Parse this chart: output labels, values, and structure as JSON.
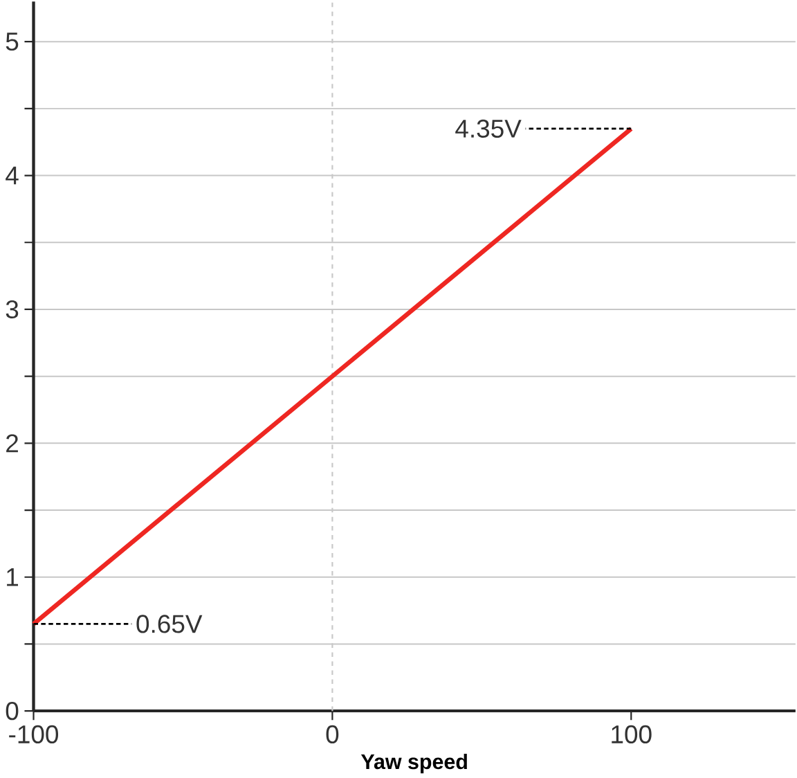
{
  "chart_data": {
    "type": "line",
    "xlabel": "Yaw speed",
    "x": [
      -100,
      100
    ],
    "series": [
      {
        "color": "#ee2722",
        "values": [
          0.65,
          4.35
        ]
      }
    ],
    "xlim": [
      -100,
      155
    ],
    "xticks": [
      -100,
      0,
      100
    ],
    "ylim": [
      0,
      5.3
    ],
    "yticks": [
      0,
      {
        "value": 0.5,
        "label": null
      },
      1,
      {
        "value": 1.5,
        "label": null
      },
      2,
      {
        "value": 2.5,
        "label": null
      },
      3,
      {
        "value": 3.5,
        "label": null
      },
      4,
      {
        "value": 4.5,
        "label": null
      },
      5
    ],
    "grid": "y",
    "marker": "none",
    "line_style": "solid",
    "ref_lines": [
      {
        "axis": "x",
        "value": 0,
        "color": "#c8c8c8",
        "line_style": "dashed"
      }
    ],
    "annotations": [
      {
        "text": "4.35V",
        "x": 100,
        "y": 4.35
      },
      {
        "text": "0.65V",
        "x": -100,
        "y": 0.65
      }
    ]
  }
}
